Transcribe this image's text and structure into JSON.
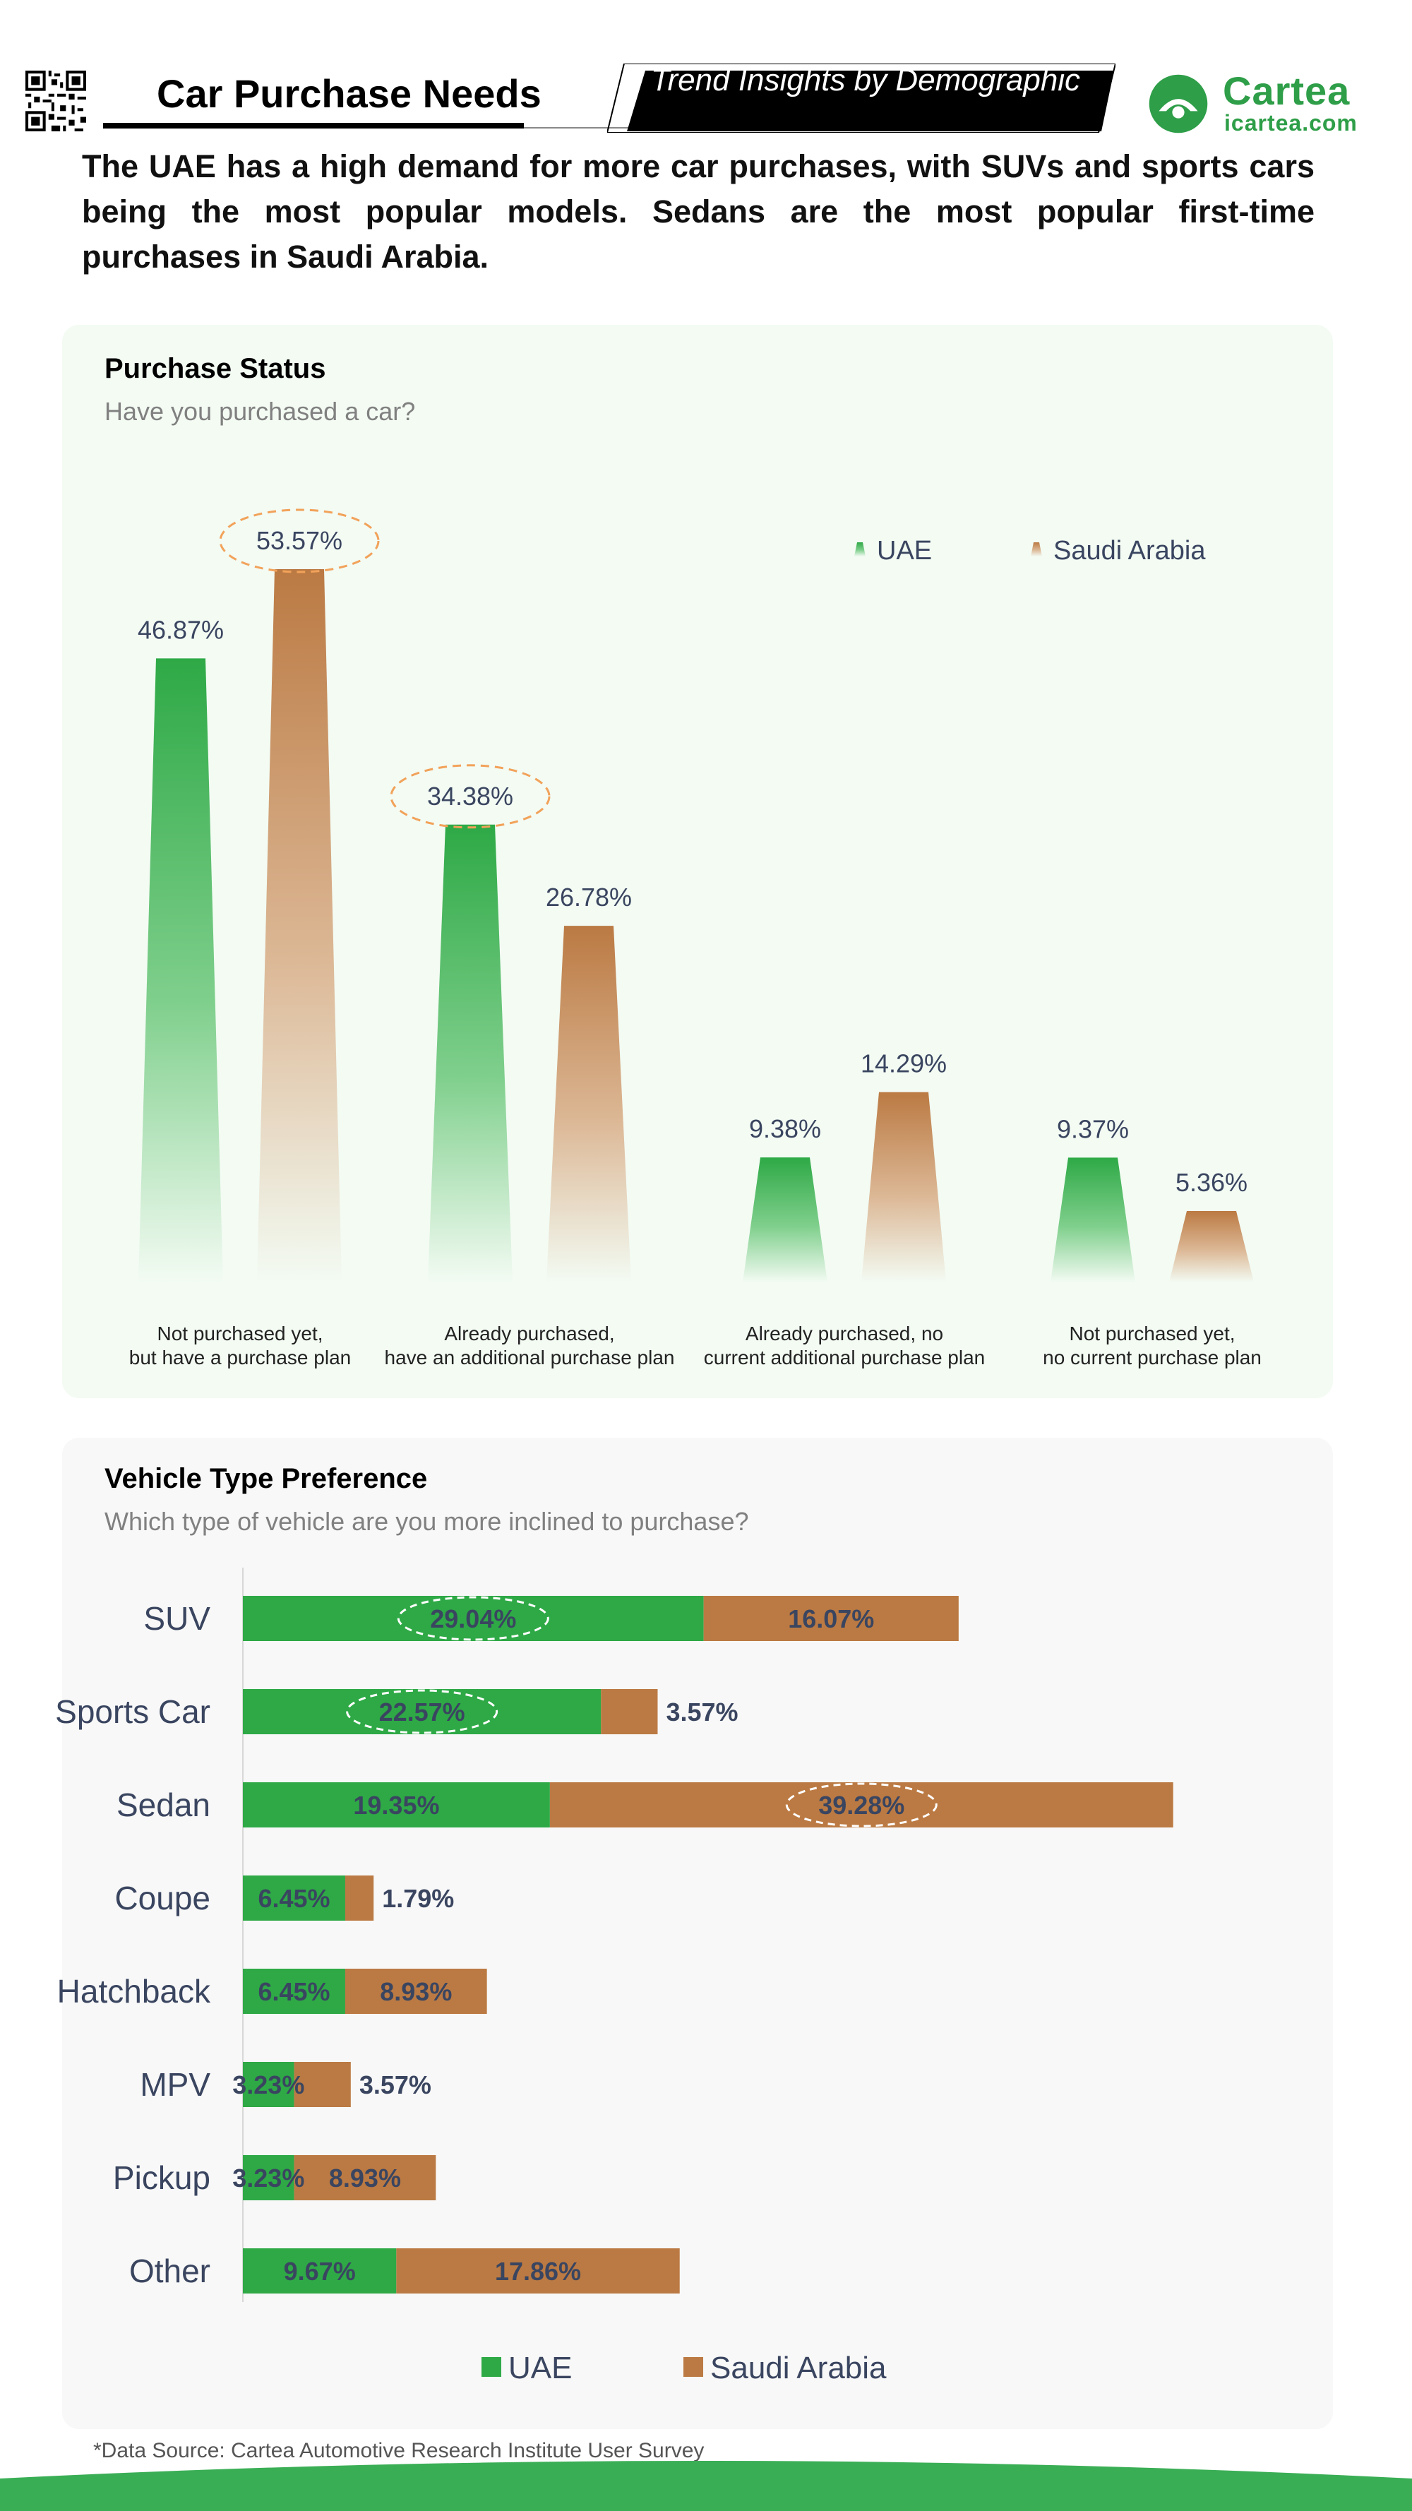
{
  "header": {
    "title": "Car Purchase Needs",
    "banner": "Trend Insights by Demographic",
    "logo_name": "Cartea",
    "logo_url": "icartea.com",
    "headline": "The UAE has a high demand for more car purchases, with SUVs and sports cars being the most popular models. Sedans are the most popular first-time purchases in Saudi Arabia."
  },
  "colors": {
    "uae": "#2ea946",
    "saudi": "#bb7a43",
    "brand": "#2e9e48",
    "highlight": "#f2a25a"
  },
  "purchase_status": {
    "title": "Purchase Status",
    "subtitle": "Have you purchased a car?"
  },
  "vehicle_type": {
    "title": "Vehicle Type Preference",
    "subtitle": "Which type of vehicle are you more inclined to purchase?"
  },
  "footer": {
    "source": "*Data Source: Cartea Automotive Research Institute User Survey"
  },
  "chart_data": [
    {
      "type": "bar",
      "title": "Purchase Status",
      "subtitle": "Have you purchased a car?",
      "categories": [
        "Not purchased yet, but have a purchase plan",
        "Already purchased, have an additional purchase plan",
        "Already purchased, no current additional purchase plan",
        "Not purchased yet, no current purchase plan"
      ],
      "category_lines": [
        [
          "Not purchased yet,",
          "but have a purchase plan"
        ],
        [
          "Already purchased,",
          "have an additional purchase plan"
        ],
        [
          "Already purchased, no",
          "current additional purchase plan"
        ],
        [
          "Not purchased yet,",
          "no current purchase plan"
        ]
      ],
      "series": [
        {
          "name": "UAE",
          "values": [
            46.87,
            34.38,
            9.38,
            9.37
          ],
          "labels": [
            "46.87%",
            "34.38%",
            "9.38%",
            "9.37%"
          ]
        },
        {
          "name": "Saudi Arabia",
          "values": [
            53.57,
            26.78,
            14.29,
            5.36
          ],
          "labels": [
            "53.57%",
            "26.78%",
            "14.29%",
            "5.36%"
          ]
        }
      ],
      "highlighted": [
        {
          "series": "Saudi Arabia",
          "category_index": 0
        },
        {
          "series": "UAE",
          "category_index": 1
        }
      ],
      "legend": [
        "UAE",
        "Saudi Arabia"
      ],
      "legend_position": "top-right",
      "ylim": [
        0,
        55
      ],
      "grid": false
    },
    {
      "type": "bar",
      "orientation": "horizontal",
      "stacked": true,
      "title": "Vehicle Type Preference",
      "subtitle": "Which type of vehicle are you more inclined to purchase?",
      "categories": [
        "SUV",
        "Sports Car",
        "Sedan",
        "Coupe",
        "Hatchback",
        "MPV",
        "Pickup",
        "Other"
      ],
      "series": [
        {
          "name": "UAE",
          "values": [
            29.04,
            22.57,
            19.35,
            6.45,
            6.45,
            3.23,
            3.23,
            9.67
          ],
          "labels": [
            "29.04%",
            "22.57%",
            "19.35%",
            "6.45%",
            "6.45%",
            "3.23%",
            "3.23%",
            "9.67%"
          ]
        },
        {
          "name": "Saudi Arabia",
          "values": [
            16.07,
            3.57,
            39.28,
            1.79,
            8.93,
            3.57,
            8.93,
            17.86
          ],
          "labels": [
            "16.07%",
            "3.57%",
            "39.28%",
            "1.79%",
            "8.93%",
            "3.57%",
            "8.93%",
            "17.86%"
          ]
        }
      ],
      "highlighted": [
        {
          "series": "UAE",
          "category_index": 0
        },
        {
          "series": "UAE",
          "category_index": 1
        },
        {
          "series": "Saudi Arabia",
          "category_index": 2
        }
      ],
      "legend": [
        "UAE",
        "Saudi Arabia"
      ],
      "legend_position": "bottom",
      "xlim": [
        0,
        60
      ],
      "grid": false
    }
  ]
}
